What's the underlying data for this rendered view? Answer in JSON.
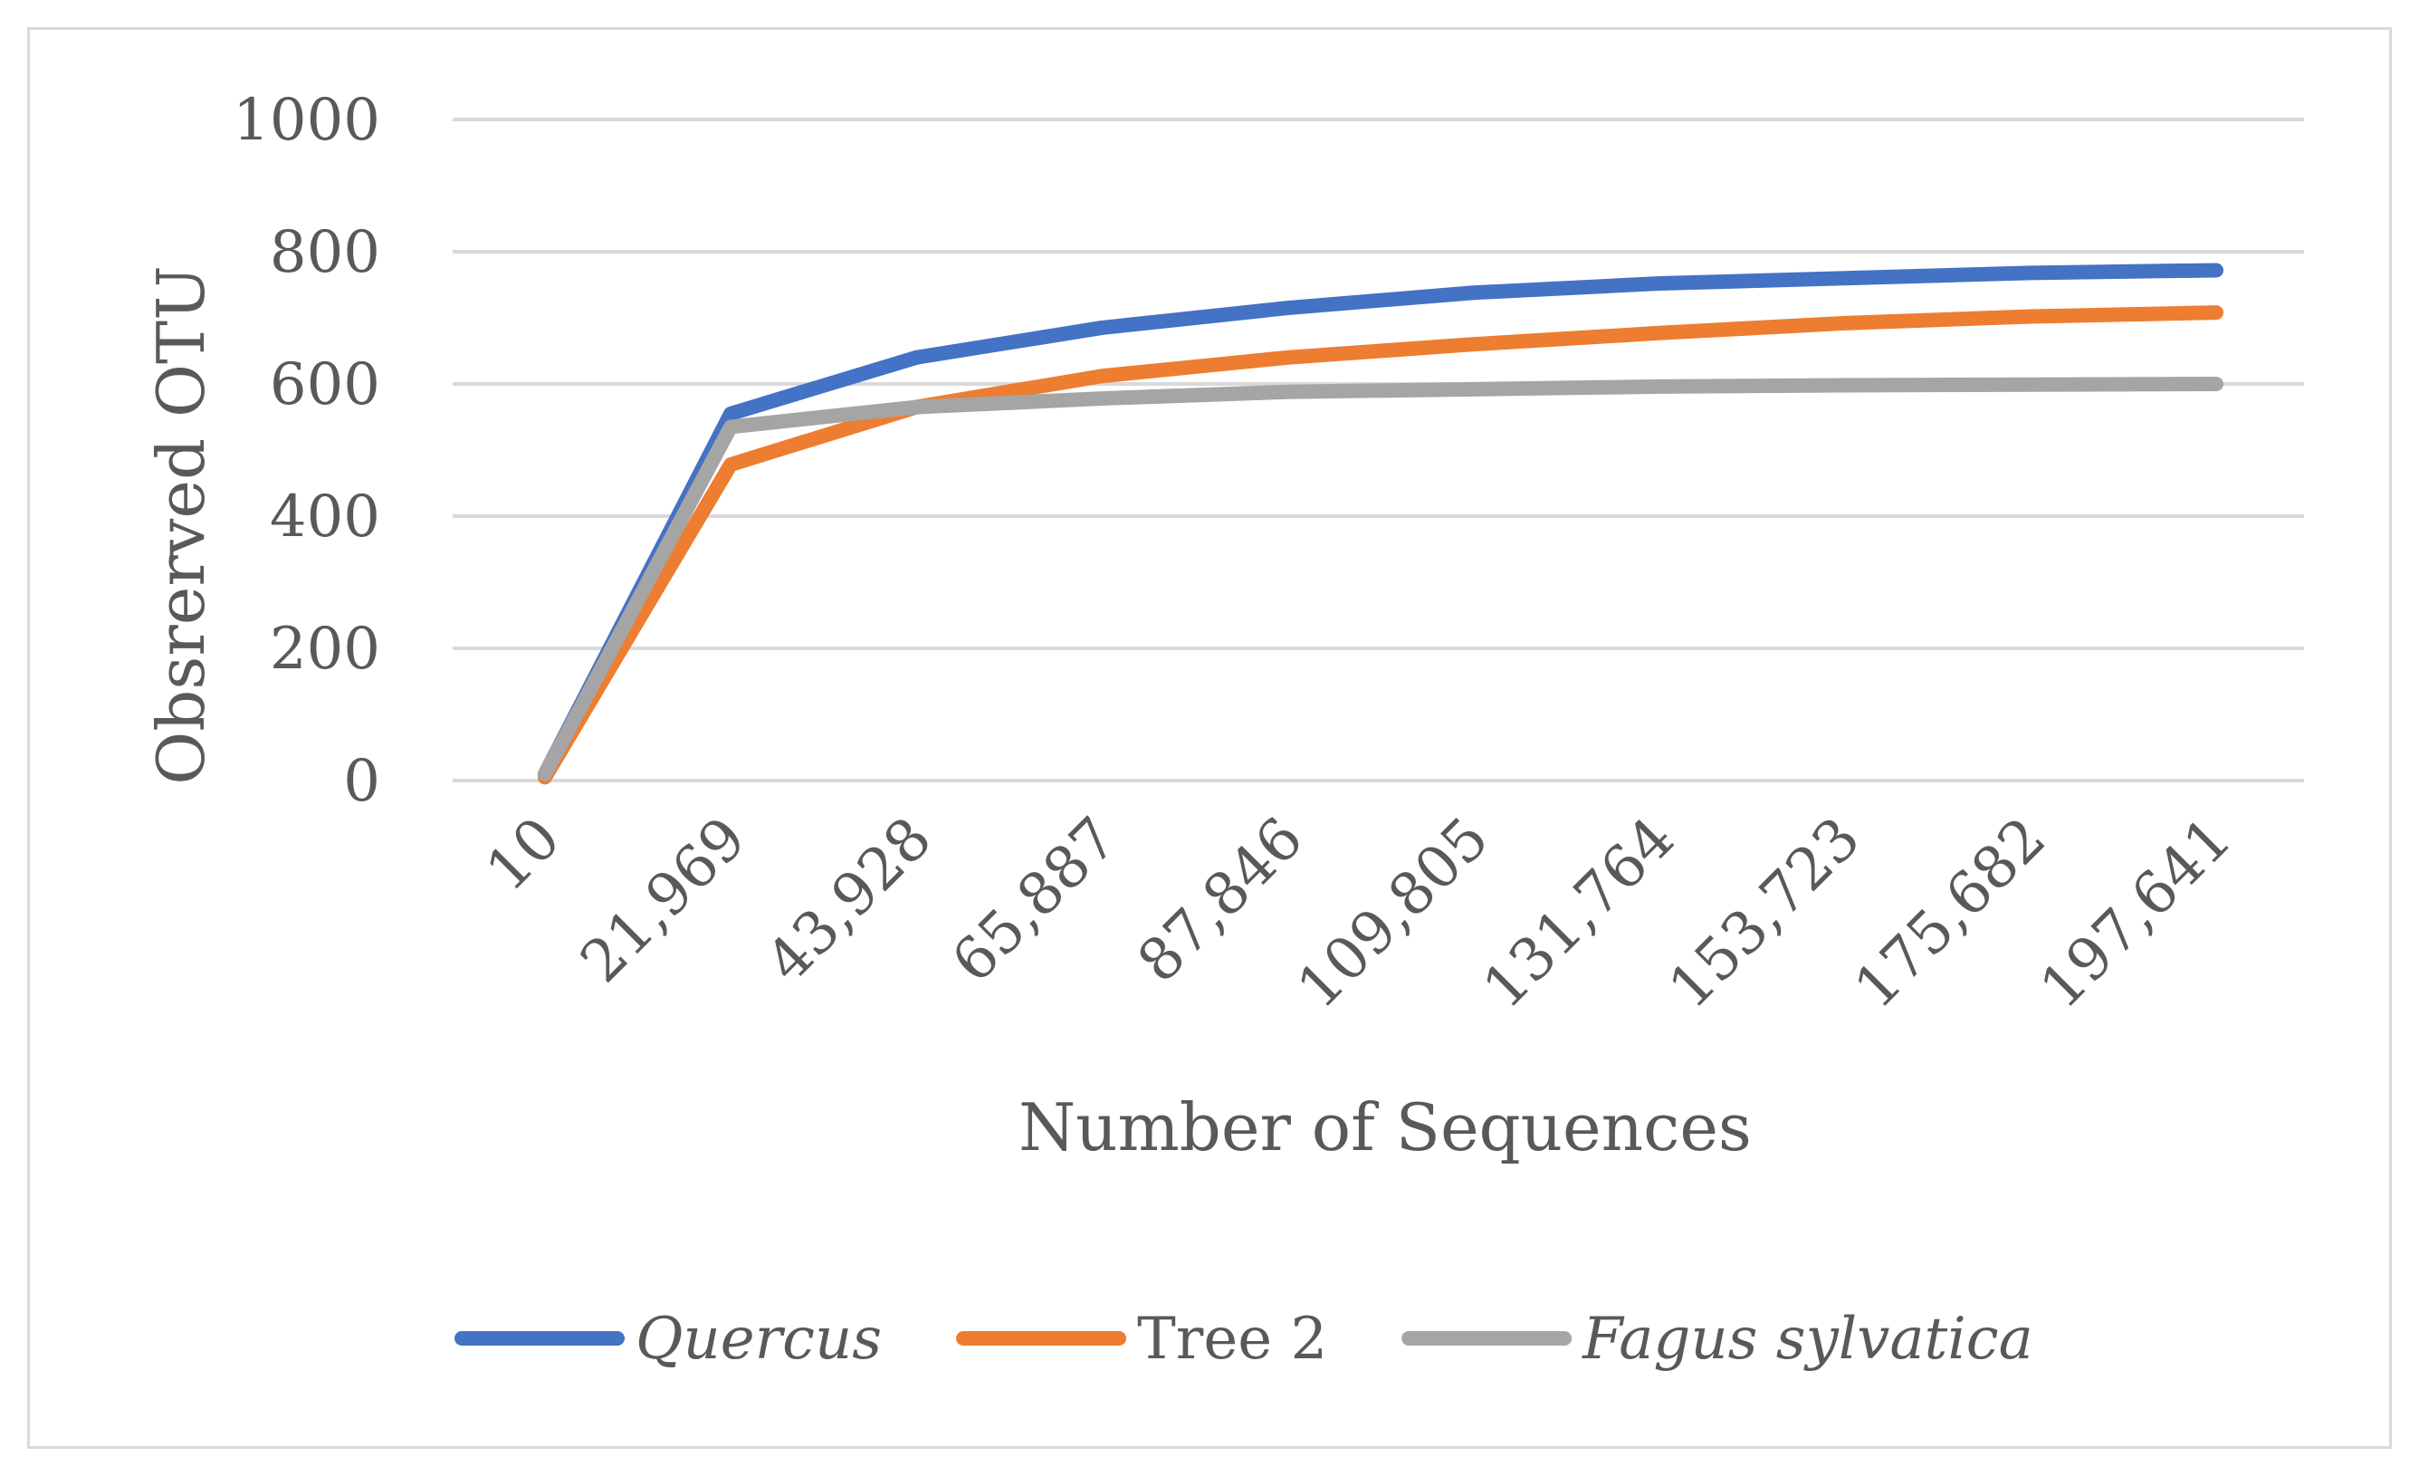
{
  "chart_data": {
    "type": "line",
    "title": "",
    "xlabel": "Number of Sequences",
    "ylabel": "Obsrerved OTU",
    "categories": [
      "10",
      "21,969",
      "43,928",
      "65,887",
      "87,846",
      "109,805",
      "131,764",
      "153,723",
      "175,682",
      "197,641"
    ],
    "ylim": [
      0,
      1000
    ],
    "yticks": [
      "0",
      "200",
      "400",
      "600",
      "800",
      "1000"
    ],
    "ytick_values": [
      0,
      200,
      400,
      600,
      800,
      1000
    ],
    "grid": true,
    "legend_position": "bottom",
    "series": [
      {
        "name": "Quercus",
        "italic": true,
        "color": "#4472c4",
        "values": [
          10,
          555,
          640,
          685,
          715,
          738,
          752,
          760,
          768,
          772
        ]
      },
      {
        "name": "Tree 2",
        "italic": false,
        "color": "#ed7d31",
        "values": [
          5,
          478,
          565,
          612,
          640,
          660,
          677,
          692,
          702,
          708
        ]
      },
      {
        "name": "Fagus sylvatica",
        "italic": true,
        "color": "#a5a5a5",
        "values": [
          10,
          535,
          565,
          578,
          588,
          592,
          596,
          598,
          599,
          600
        ]
      }
    ]
  }
}
